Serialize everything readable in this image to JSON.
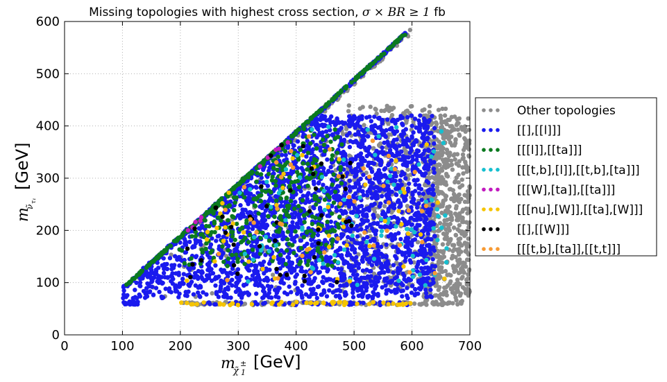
{
  "chart_data": {
    "type": "scatter",
    "title_prefix": "Missing topologies with highest cross section, ",
    "title_math": "σ × BR ≥ 1",
    "title_suffix": " fb",
    "xlabel_unit": "[GeV]",
    "ylabel_unit": "[GeV]",
    "xlim": [
      0,
      700
    ],
    "ylim": [
      0,
      600
    ],
    "xticks": [
      "0",
      "100",
      "200",
      "300",
      "400",
      "500",
      "600",
      "700"
    ],
    "yticks": [
      "0",
      "100",
      "200",
      "300",
      "400",
      "500",
      "600"
    ],
    "grid": true,
    "legend_position": "right, outside plot",
    "series": [
      {
        "name": "Other topologies",
        "color": "#8c8c8c",
        "regions": [
          {
            "kind": "diag",
            "x": [
              280,
              600
            ],
            "spread": 12,
            "n": 140
          },
          {
            "kind": "tri",
            "x": [
              480,
              660
            ],
            "ymin": 90,
            "ymax": 440,
            "n": 500
          },
          {
            "kind": "box",
            "x": [
              620,
              700
            ],
            "y": [
              60,
              420
            ],
            "n": 600
          },
          {
            "kind": "band",
            "x": [
              200,
              690
            ],
            "y": 60,
            "n": 150
          },
          {
            "kind": "tri",
            "x": [
              120,
              480
            ],
            "ymin": 70,
            "ymax": 430,
            "n": 100
          }
        ]
      },
      {
        "name": "[[],[[l]]]",
        "color": "#1a1aee",
        "regions": [
          {
            "kind": "tri",
            "x": [
              100,
              640
            ],
            "ymin": 70,
            "ymax": 420,
            "n": 2600
          },
          {
            "kind": "diag",
            "x": [
              100,
              590
            ],
            "spread": 6,
            "n": 400
          },
          {
            "kind": "box",
            "x": [
              102,
              128
            ],
            "y": [
              58,
              64
            ],
            "n": 25
          },
          {
            "kind": "band",
            "x": [
              240,
              600
            ],
            "y": 60,
            "n": 60
          }
        ]
      },
      {
        "name": "[[[l]],[[ta]]]",
        "color": "#0b7a1f",
        "regions": [
          {
            "kind": "diag",
            "x": [
              100,
              590
            ],
            "spread": 4,
            "n": 260
          },
          {
            "kind": "tri",
            "x": [
              180,
              480
            ],
            "ymin": 130,
            "ymax": 400,
            "n": 320
          }
        ]
      },
      {
        "name": "[[[t,b],[l]],[[t,b],[ta]]]",
        "color": "#17bfcf",
        "regions": [
          {
            "kind": "tri",
            "x": [
              300,
              660
            ],
            "ymin": 90,
            "ymax": 400,
            "n": 90
          }
        ]
      },
      {
        "name": "[[[W],[ta]],[[ta]]]",
        "color": "#c21bbf",
        "regions": [
          {
            "kind": "diag",
            "x": [
              180,
              400
            ],
            "spread": 8,
            "n": 10
          }
        ]
      },
      {
        "name": "[[[nu],[W]],[[ta],[W]]]",
        "color": "#f5c400",
        "regions": [
          {
            "kind": "tri",
            "x": [
              200,
              660
            ],
            "ymin": 100,
            "ymax": 400,
            "n": 50
          },
          {
            "kind": "band",
            "x": [
              200,
              600
            ],
            "y": 60,
            "n": 50
          }
        ]
      },
      {
        "name": "[[],[[W]]]",
        "color": "#000000",
        "regions": [
          {
            "kind": "tri",
            "x": [
              200,
              500
            ],
            "ymin": 100,
            "ymax": 380,
            "n": 45
          }
        ]
      },
      {
        "name": "[[[t,b],[ta]],[[t,t]]]",
        "color": "#f79a33",
        "regions": [
          {
            "kind": "tri",
            "x": [
              260,
              660
            ],
            "ymin": 100,
            "ymax": 380,
            "n": 45
          }
        ]
      }
    ]
  }
}
